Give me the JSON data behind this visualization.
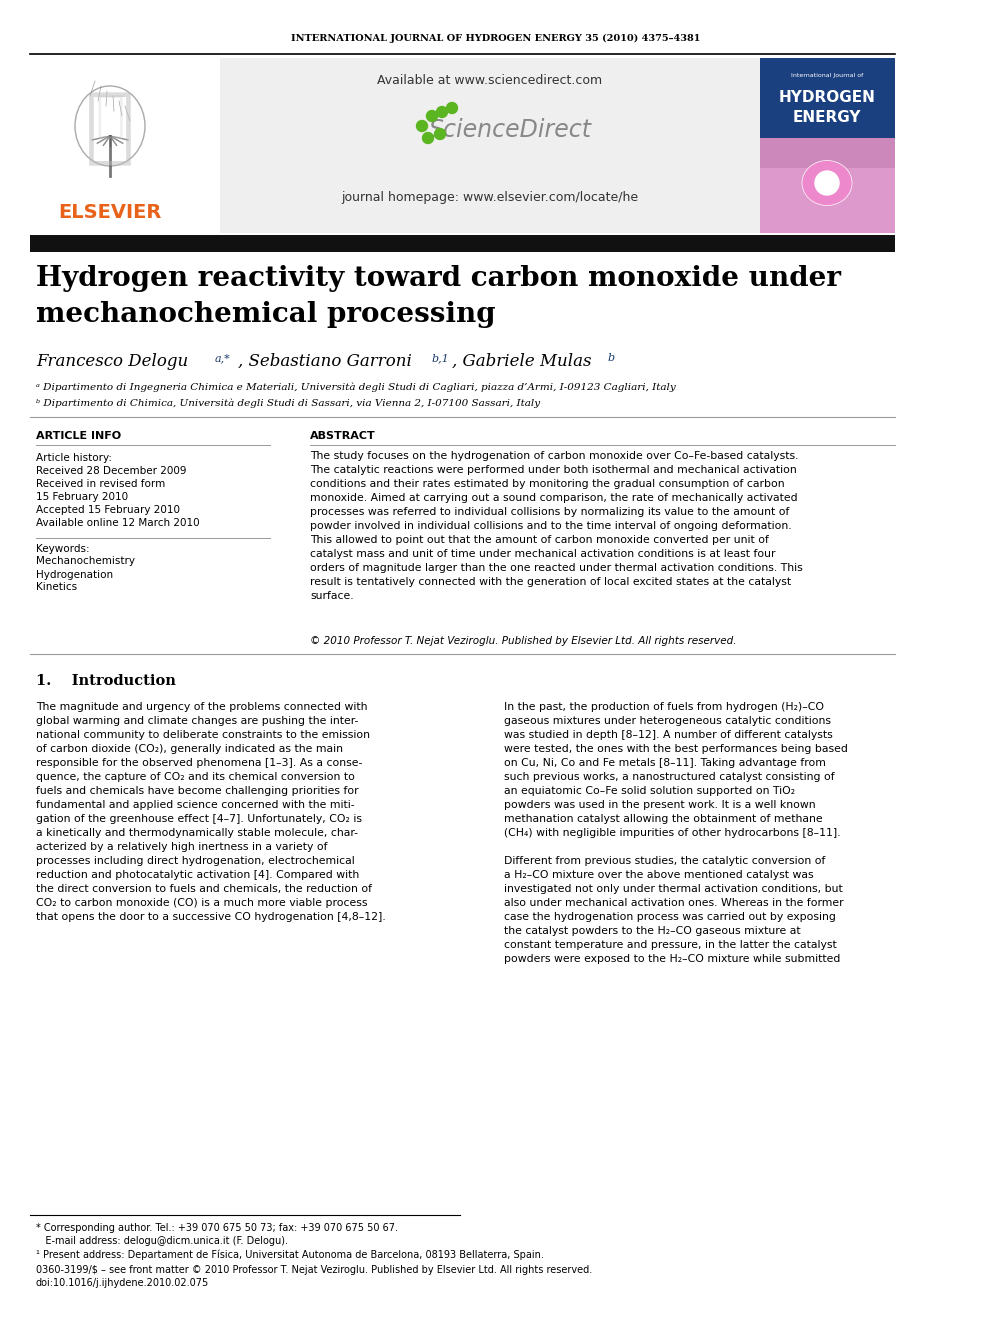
{
  "journal_header": "INTERNATIONAL JOURNAL OF HYDROGEN ENERGY 35 (2010) 4375–4381",
  "title_line1": "Hydrogen reactivity toward carbon monoxide under",
  "title_line2": "mechanochemical processing",
  "author_main1": "Francesco Delogu ",
  "author_super1": "a,*",
  "author_main2": ", Sebastiano Garroni",
  "author_super2": "b,1",
  "author_main3": ", Gabriele Mulas",
  "author_super3": "b",
  "affil_a": "ᵃ Dipartimento di Ingegneria Chimica e Materiali, Università degli Studi di Cagliari, piazza d’Armi, I-09123 Cagliari, Italy",
  "affil_b": "ᵇ Dipartimento di Chimica, Università degli Studi di Sassari, via Vienna 2, I-07100 Sassari, Italy",
  "article_info_title": "ARTICLE INFO",
  "article_history_label": "Article history:",
  "received": "Received 28 December 2009",
  "received_revised1": "Received in revised form",
  "received_revised2": "15 February 2010",
  "accepted": "Accepted 15 February 2010",
  "available": "Available online 12 March 2010",
  "keywords_label": "Keywords:",
  "keyword1": "Mechanochemistry",
  "keyword2": "Hydrogenation",
  "keyword3": "Kinetics",
  "abstract_title": "ABSTRACT",
  "abstract_text": "The study focuses on the hydrogenation of carbon monoxide over Co–Fe-based catalysts.\nThe catalytic reactions were performed under both isothermal and mechanical activation\nconditions and their rates estimated by monitoring the gradual consumption of carbon\nmonoxide. Aimed at carrying out a sound comparison, the rate of mechanically activated\nprocesses was referred to individual collisions by normalizing its value to the amount of\npowder involved in individual collisions and to the time interval of ongoing deformation.\nThis allowed to point out that the amount of carbon monoxide converted per unit of\ncatalyst mass and unit of time under mechanical activation conditions is at least four\norders of magnitude larger than the one reacted under thermal activation conditions. This\nresult is tentatively connected with the generation of local excited states at the catalyst\nsurface.",
  "copyright": "© 2010 Professor T. Nejat Veziroglu. Published by Elsevier Ltd. All rights reserved.",
  "section1_title": "1.    Introduction",
  "intro_left": "The magnitude and urgency of the problems connected with\nglobal warming and climate changes are pushing the inter-\nnational community to deliberate constraints to the emission\nof carbon dioxide (CO₂), generally indicated as the main\nresponsible for the observed phenomena [1–3]. As a conse-\nquence, the capture of CO₂ and its chemical conversion to\nfuels and chemicals have become challenging priorities for\nfundamental and applied science concerned with the miti-\ngation of the greenhouse effect [4–7]. Unfortunately, CO₂ is\na kinetically and thermodynamically stable molecule, char-\nacterized by a relatively high inertness in a variety of\nprocesses including direct hydrogenation, electrochemical\nreduction and photocatalytic activation [4]. Compared with\nthe direct conversion to fuels and chemicals, the reduction of\nCO₂ to carbon monoxide (CO) is a much more viable process\nthat opens the door to a successive CO hydrogenation [4,8–12].",
  "intro_right": "In the past, the production of fuels from hydrogen (H₂)–CO\ngaseous mixtures under heterogeneous catalytic conditions\nwas studied in depth [8–12]. A number of different catalysts\nwere tested, the ones with the best performances being based\non Cu, Ni, Co and Fe metals [8–11]. Taking advantage from\nsuch previous works, a nanostructured catalyst consisting of\nan equiatomic Co–Fe solid solution supported on TiO₂\npowders was used in the present work. It is a well known\nmethanation catalyst allowing the obtainment of methane\n(CH₄) with negligible impurities of other hydrocarbons [8–11].\n\nDifferent from previous studies, the catalytic conversion of\na H₂–CO mixture over the above mentioned catalyst was\ninvestigated not only under thermal activation conditions, but\nalso under mechanical activation ones. Whereas in the former\ncase the hydrogenation process was carried out by exposing\nthe catalyst powders to the H₂–CO gaseous mixture at\nconstant temperature and pressure, in the latter the catalyst\npowders were exposed to the H₂–CO mixture while submitted",
  "footnote_star": "* Corresponding author. Tel.: +39 070 675 50 73; fax: +39 070 675 50 67.",
  "footnote_email": "   E-mail address: delogu@dicm.unica.it (F. Delogu).",
  "footnote_1": "¹ Present address: Departament de Física, Universitat Autonoma de Barcelona, 08193 Bellaterra, Spain.",
  "footnote_doi1": "0360-3199/$ – see front matter © 2010 Professor T. Nejat Veziroglu. Published by Elsevier Ltd. All rights reserved.",
  "footnote_doi2": "doi:10.1016/j.ijhydene.2010.02.075",
  "available_url": "Available at www.sciencedirect.com",
  "journal_homepage": "journal homepage: www.elsevier.com/locate/he",
  "bg_color": "#ffffff",
  "gray_box": "#efefef",
  "black": "#000000",
  "dark_blue": "#1a3a6b",
  "orange": "#e8621a",
  "cover_blue": "#1a4080",
  "cover_pink": "#cc66aa",
  "green_dots": "#5ab520",
  "sd_gray": "#888888",
  "dark_bar": "#1a1a2e"
}
